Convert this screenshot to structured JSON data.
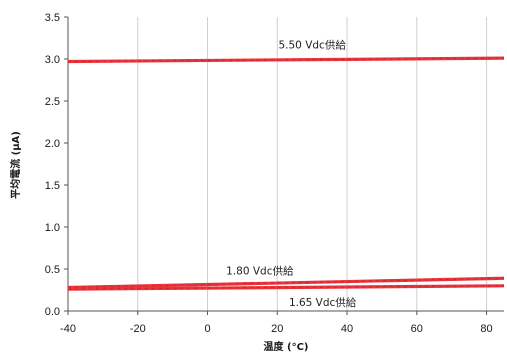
{
  "chart_data": {
    "type": "line",
    "title": "",
    "xlabel": "温度 (°C)",
    "ylabel": "平均電流 (μA)",
    "xlim": [
      -40,
      85
    ],
    "ylim": [
      0.0,
      3.5
    ],
    "x_ticks": [
      "-40",
      "-20",
      "0",
      "20",
      "40",
      "60",
      "80"
    ],
    "y_ticks": [
      "0.0",
      "0.5",
      "1.0",
      "1.5",
      "2.0",
      "2.5",
      "3.0",
      "3.5"
    ],
    "grid": "vertical",
    "series": [
      {
        "name": "5.50 Vdc供給",
        "x": [
          -40,
          85
        ],
        "y": [
          2.97,
          3.01
        ]
      },
      {
        "name": "1.80 Vdc供給",
        "x": [
          -40,
          85
        ],
        "y": [
          0.28,
          0.39
        ]
      },
      {
        "name": "1.65 Vdc供給",
        "x": [
          -40,
          85
        ],
        "y": [
          0.26,
          0.3
        ]
      }
    ],
    "colors": {
      "line": "#e8343c",
      "grid": "#cfcfcf",
      "axis": "#555555"
    }
  }
}
